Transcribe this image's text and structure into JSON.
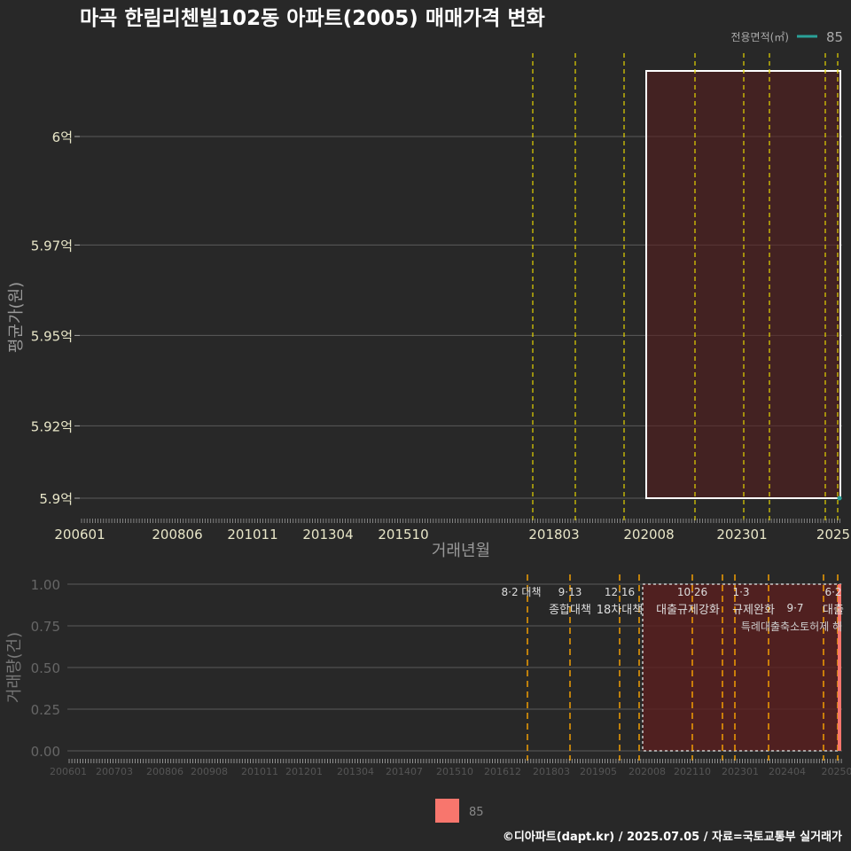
{
  "title": "마곡 한림리첸빌102동 아파트(2005) 매매가격 변화",
  "footer": "©디아파트(dapt.kr) / 2025.07.05 / 자료=국토교통부 실거래가",
  "colors": {
    "bg": "#282828",
    "line": "#2aa198",
    "bar": "#f8766d",
    "policy_top": "#e6d600",
    "policy_bottom": "#ffa500",
    "highlight": "#5a1e1e"
  },
  "chart_data": [
    {
      "type": "line",
      "title": "마곡 한림리첸빌102동 아파트(2005) 매매가격 변화",
      "xlabel": "거래년월",
      "ylabel": "평균가(원)",
      "x_ticks": [
        "200601",
        "200806",
        "201011",
        "201304",
        "201510",
        "201803",
        "202008",
        "202301",
        "2025"
      ],
      "y_ticks": [
        "5.9억",
        "5.92억",
        "5.95억",
        "5.97억",
        "6억"
      ],
      "ylim": [
        5.9,
        6.0
      ],
      "legend": {
        "title": "전용면적(㎡)",
        "entries": [
          "85"
        ],
        "position": "top-right"
      },
      "series": [
        {
          "name": "85",
          "points": [
            {
              "x": "202506",
              "y": 5.9
            }
          ]
        }
      ],
      "policy_lines": [
        "201708",
        "201809",
        "201912",
        "202010",
        "202110",
        "202301",
        "202304",
        "202409",
        "202506"
      ],
      "highlight_range": [
        "202009",
        "202506"
      ]
    },
    {
      "type": "bar",
      "xlabel": "",
      "ylabel": "거래량(건)",
      "x_ticks": [
        "200601",
        "200703",
        "200806",
        "200908",
        "201011",
        "201201",
        "201304",
        "201407",
        "201510",
        "201612",
        "201803",
        "201905",
        "202008",
        "202110",
        "202301",
        "202404",
        "20250"
      ],
      "y_ticks": [
        "0.00",
        "0.25",
        "0.50",
        "0.75",
        "1.00"
      ],
      "ylim": [
        0,
        1
      ],
      "legend": {
        "entries": [
          "85"
        ],
        "position": "bottom"
      },
      "series": [
        {
          "name": "85",
          "points": [
            {
              "x": "202506",
              "y": 1
            }
          ]
        }
      ],
      "highlight_range": [
        "202008",
        "202506"
      ],
      "annotations": [
        {
          "date": "8·2 대책",
          "label": ""
        },
        {
          "date": "9·13",
          "label": "종합대책"
        },
        {
          "date": "12·16",
          "label": "18차대책"
        },
        {
          "date": "10·26",
          "label": "대출규제강화"
        },
        {
          "date": "1·3",
          "label": "규제완화"
        },
        {
          "date": "9·7",
          "label": "특례대출축소토허제 해"
        },
        {
          "date": "6·2",
          "label": "대출"
        }
      ]
    }
  ]
}
